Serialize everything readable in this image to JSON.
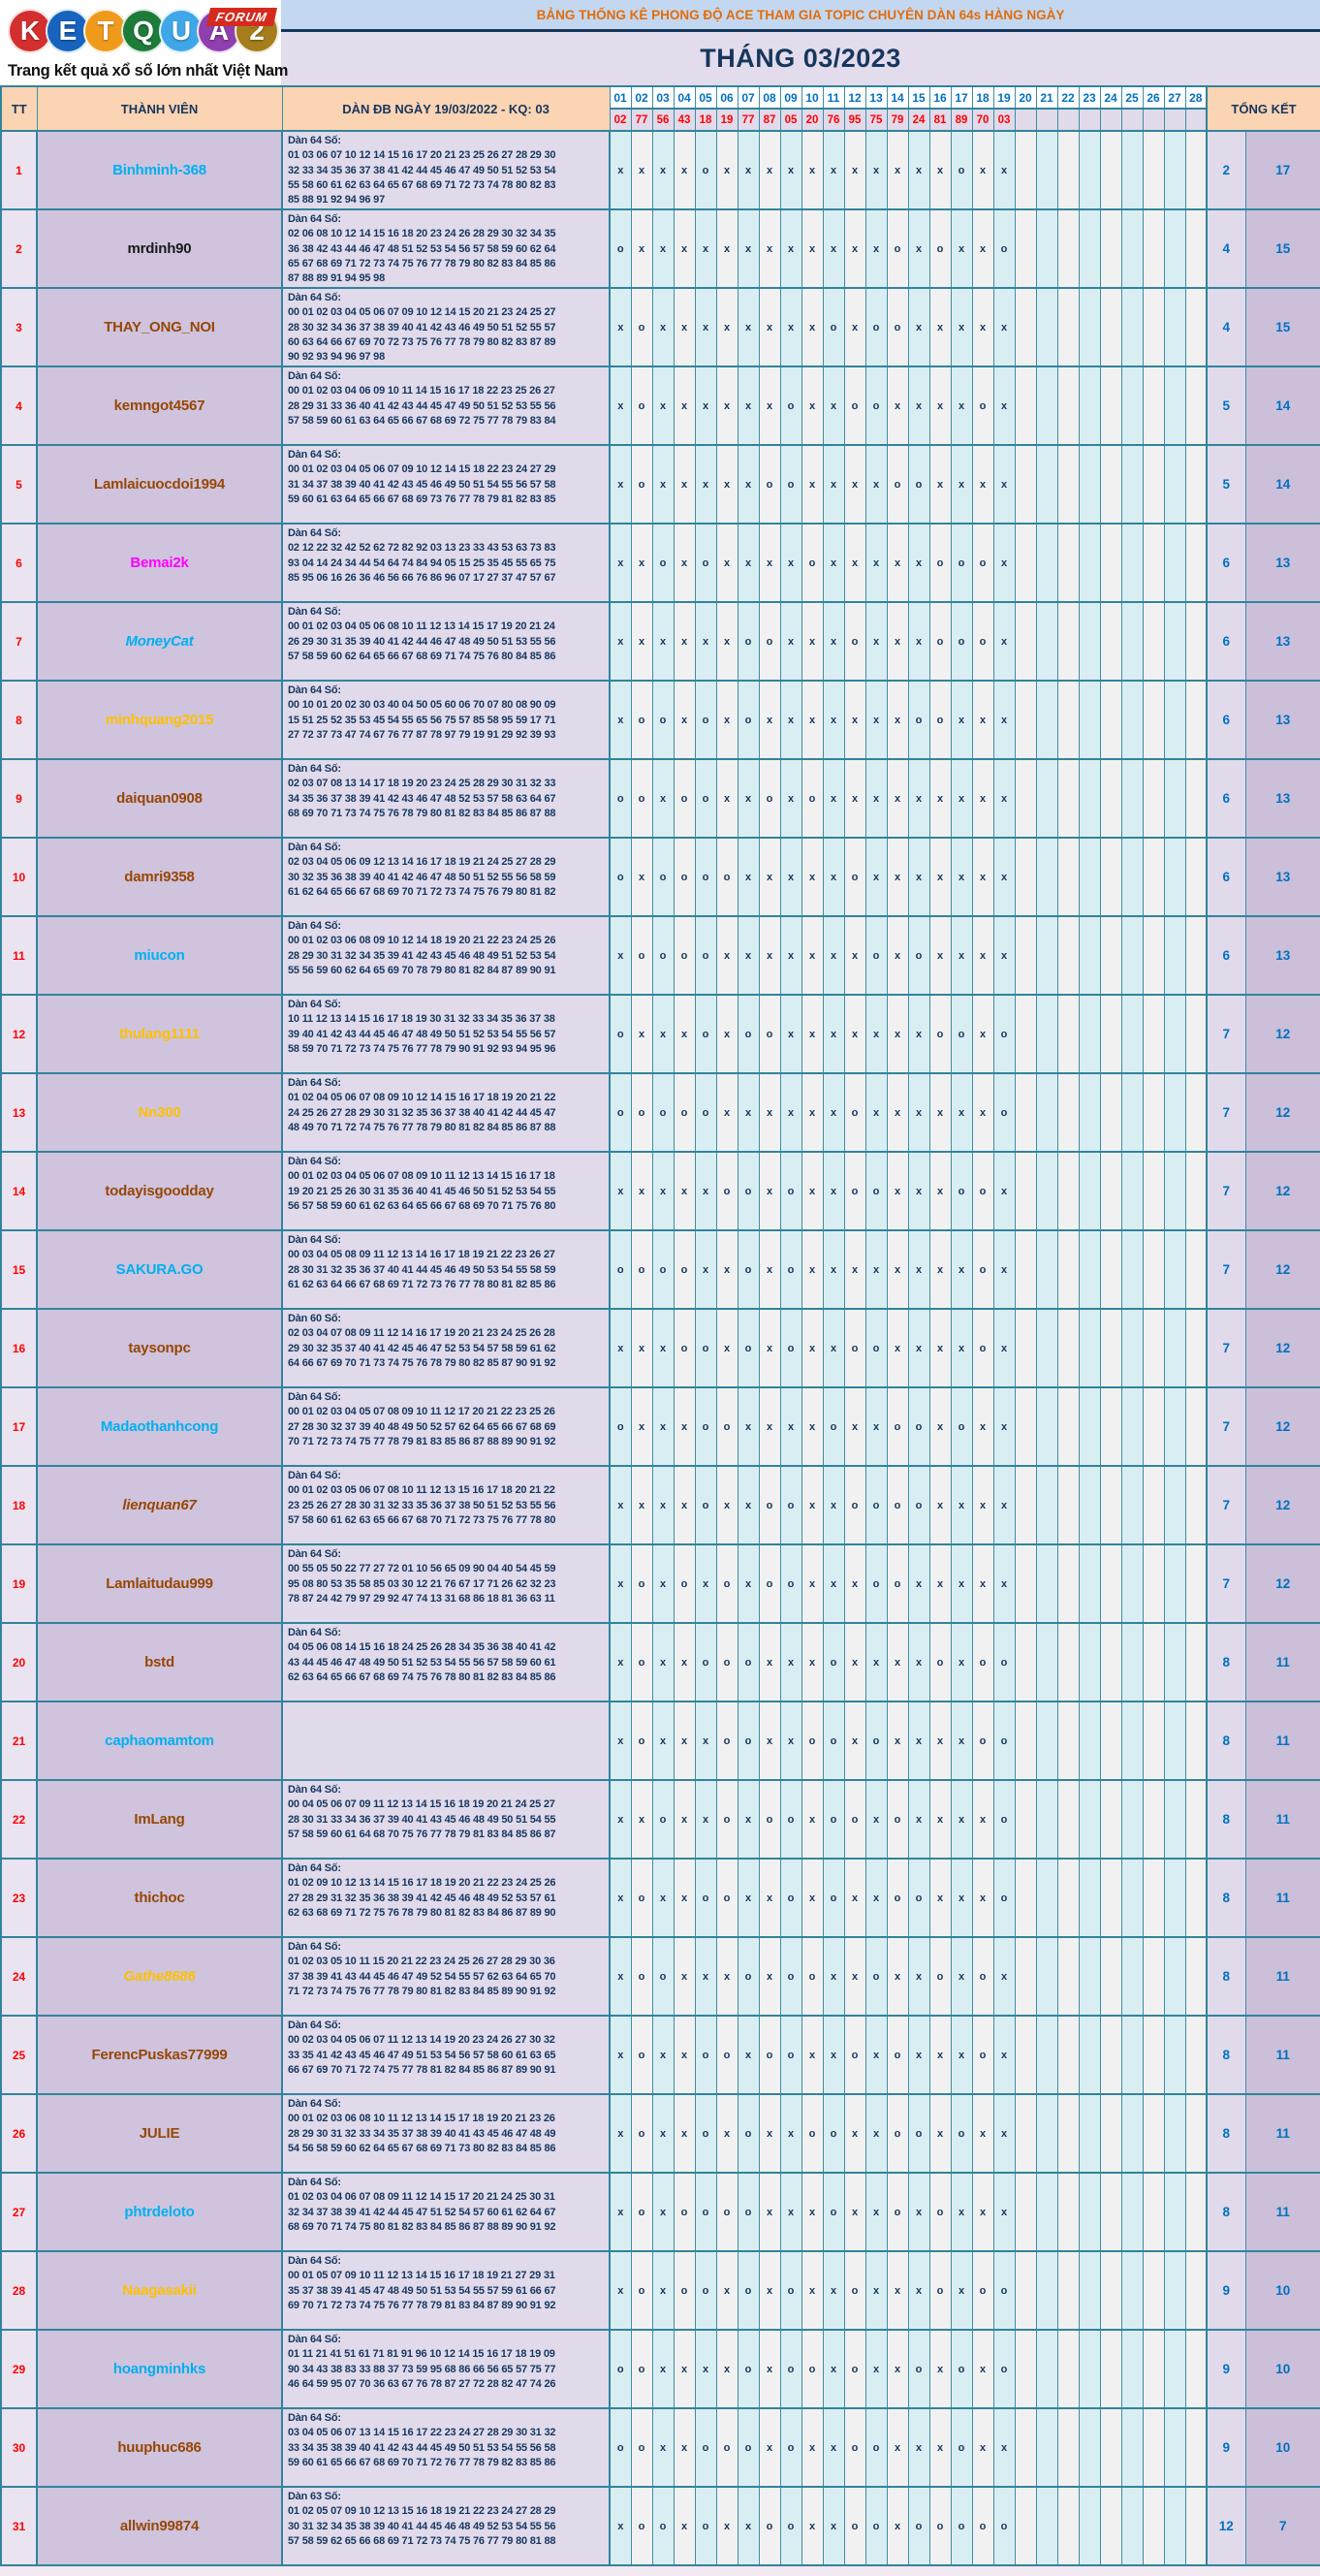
{
  "logo": {
    "letters": [
      {
        "ch": "K",
        "color": "#d42f2f"
      },
      {
        "ch": "E",
        "color": "#1763bd"
      },
      {
        "ch": "T",
        "color": "#f09a1c"
      },
      {
        "ch": "Q",
        "color": "#1d7c3a"
      },
      {
        "ch": "U",
        "color": "#3fa7e8"
      },
      {
        "ch": "A",
        "color": "#8f3fae"
      },
      {
        "ch": "2",
        "color": "#a67d1c"
      }
    ],
    "badge": "FORUM",
    "tagline": "Trang kết quả xổ số lớn nhất Việt Nam"
  },
  "banner": {
    "title": "BẢNG THỐNG KÊ PHONG ĐỘ ACE THAM GIA TOPIC CHUYÊN DÀN 64s HÀNG NGÀY",
    "month": "THÁNG 03/2023"
  },
  "table": {
    "col_tt": "TT",
    "col_member": "THÀNH VIÊN",
    "col_dan": "DÀN ĐB NGÀY 19/03/2022 - KQ: 03",
    "col_total": "TỔNG KẾT",
    "days": [
      "01",
      "02",
      "03",
      "04",
      "05",
      "06",
      "07",
      "08",
      "09",
      "10",
      "11",
      "12",
      "13",
      "14",
      "15",
      "16",
      "17",
      "18",
      "19",
      "20",
      "21",
      "22",
      "23",
      "24",
      "25",
      "26",
      "27",
      "28"
    ],
    "results": [
      "02",
      "77",
      "56",
      "43",
      "18",
      "19",
      "77",
      "87",
      "05",
      "20",
      "76",
      "95",
      "75",
      "79",
      "24",
      "81",
      "89",
      "70",
      "03",
      "",
      "",
      "",
      "",
      "",
      "",
      "",
      "",
      ""
    ],
    "rows": [
      {
        "tt": "1",
        "name": "Binhminh-368",
        "color": "#00b0f0",
        "italic": false,
        "dan_label": "Dàn 64 Số:",
        "dan_lines": [
          "01 03 06 07 10 12 14 15 16 17 20 21 23 25 26 27 28 29 30",
          "32 33 34 35 36 37 38 41 42 44 45 46 47 49 50 51 52 53 54",
          "55 58 60 61 62 63 64 65 67 68 69 71 72 73 74 78 80 82 83",
          "85 88 91 92 94 96 97"
        ],
        "marks": "xxxxoxxxxxxxxxxxoxx",
        "miss": "2",
        "hit": "17"
      },
      {
        "tt": "2",
        "name": "mrdinh90",
        "color": "#1a1a1a",
        "italic": false,
        "dan_label": "Dàn 64 Số:",
        "dan_lines": [
          "02 06 08 10 12 14 15 16 18 20 23 24 26 28 29 30 32 34 35",
          "36 38 42 43 44 46 47 48 51 52 53 54 56 57 58 59 60 62 64",
          "65 67 68 69 71 72 73 74 75 76 77 78 79 80 82 83 84 85 86",
          "87 88 89 91 94 95 98"
        ],
        "marks": "oxxxxxxxxxxxxoxoxxo",
        "miss": "4",
        "hit": "15"
      },
      {
        "tt": "3",
        "name": "THAY_ONG_NOI",
        "color": "#974706",
        "italic": false,
        "dan_label": "Dàn 64 Số:",
        "dan_lines": [
          "00 01 02 03 04 05 06 07 09 10 12 14 15 20 21 23 24 25 27",
          "28 30 32 34 36 37 38 39 40 41 42 43 46 49 50 51 52 55 57",
          "60 63 64 66 67 69 70 72 73 75 76 77 78 79 80 82 83 87 89",
          "90 92 93 94 96 97 98"
        ],
        "marks": "xoxxxxxxxxoxooxxxxx",
        "miss": "4",
        "hit": "15"
      },
      {
        "tt": "4",
        "name": "kemngot4567",
        "color": "#974706",
        "italic": false,
        "dan_label": "Dàn 64 Số:",
        "dan_lines": [
          "00 01 02 03 04 06 09 10 11 14 15 16 17 18 22 23 25 26 27",
          "28 29 31 33 36 40 41 42 43 44 45 47 49 50 51 52 53 55 56",
          "57 58 59 60 61 63 64 65 66 67 68 69 72 75 77 78 79 83 84"
        ],
        "marks": "xoxxxxxxoxxooxxxxox",
        "miss": "5",
        "hit": "14"
      },
      {
        "tt": "5",
        "name": "Lamlaicuocdoi1994",
        "color": "#974706",
        "italic": false,
        "dan_label": "Dàn 64 Số:",
        "dan_lines": [
          "00 01 02 03 04 05 06 07 09 10 12 14 15 18 22 23 24 27 29",
          "31 34 37 38 39 40 41 42 43 45 46 49 50 51 54 55 56 57 58",
          "59 60 61 63 64 65 66 67 68 69 73 76 77 78 79 81 82 83 85"
        ],
        "marks": "xoxxxxxooxxxxooxxxx",
        "miss": "5",
        "hit": "14"
      },
      {
        "tt": "6",
        "name": "Bemai2k",
        "color": "#ff00ff",
        "italic": false,
        "dan_label": "Dàn 64 Số:",
        "dan_lines": [
          "02 12 22 32 42 52 62 72 82 92 03 13 23 33 43 53 63 73 83",
          "93 04 14 24 34 44 54 64 74 84 94 05 15 25 35 45 55 65 75",
          "85 95 06 16 26 36 46 56 66 76 86 96 07 17 27 37 47 57 67"
        ],
        "marks": "xxoxoxxxxoxxxxxooox",
        "miss": "6",
        "hit": "13"
      },
      {
        "tt": "7",
        "name": "MoneyCat",
        "color": "#00b0f0",
        "italic": true,
        "dan_label": "Dàn 64 Số:",
        "dan_lines": [
          "00 01 02 03 04 05 06 08 10 11 12 13 14 15 17 19 20 21 24",
          "26 29 30 31 35 39 40 41 42 44 46 47 48 49 50 51 53 55 56",
          "57 58 59 60 62 64 65 66 67 68 69 71 74 75 76 80 84 85 86"
        ],
        "marks": "xxxxxxooxxxoxxxooox",
        "miss": "6",
        "hit": "13"
      },
      {
        "tt": "8",
        "name": "minhquang2015",
        "color": "#ffc000",
        "italic": false,
        "dan_label": "Dàn 64 Số:",
        "dan_lines": [
          "00 10 01 20 02 30 03 40 04 50 05 60 06 70 07 80 08 90 09",
          "15 51 25 52 35 53 45 54 55 65 56 75 57 85 58 95 59 17 71",
          "27 72 37 73 47 74 67 76 77 87 78 97 79 19 91 29 92 39 93"
        ],
        "marks": "xooxoxoxxxxxxxooxxx",
        "miss": "6",
        "hit": "13"
      },
      {
        "tt": "9",
        "name": "daiquan0908",
        "color": "#974706",
        "italic": false,
        "dan_label": "Dàn 64 Số:",
        "dan_lines": [
          "02 03 07 08 13 14 17 18 19 20 23 24 25 28 29 30 31 32 33",
          "34 35 36 37 38 39 41 42 43 46 47 48 52 53 57 58 63 64 67",
          "68 69 70 71 73 74 75 76 78 79 80 81 82 83 84 85 86 87 88"
        ],
        "marks": "ooxooxxoxoxxxxxxxxx",
        "miss": "6",
        "hit": "13"
      },
      {
        "tt": "10",
        "name": "damri9358",
        "color": "#974706",
        "italic": false,
        "dan_label": "Dàn 64 Số:",
        "dan_lines": [
          "02 03 04 05 06 09 12 13 14 16 17 18 19 21 24 25 27 28 29",
          "30 32 35 36 38 39 40 41 42 46 47 48 50 51 52 55 56 58 59",
          "61 62 64 65 66 67 68 69 70 71 72 73 74 75 76 79 80 81 82"
        ],
        "marks": "oxooooxxxxxoxxxxxxx",
        "miss": "6",
        "hit": "13"
      },
      {
        "tt": "11",
        "name": "miucon",
        "color": "#00b0f0",
        "italic": false,
        "dan_label": "Dàn 64 Số:",
        "dan_lines": [
          "00 01 02 03 06 08 09 10 12 14 18 19 20 21 22 23 24 25 26",
          "28 29 30 31 32 34 35 39 41 42 43 45 46 48 49 51 52 53 54",
          "55 56 59 60 62 64 65 69 70 78 79 80 81 82 84 87 89 90 91"
        ],
        "marks": "xooooxxxxxxxoxoxxxx",
        "miss": "6",
        "hit": "13"
      },
      {
        "tt": "12",
        "name": "thulang1111",
        "color": "#ffc000",
        "italic": false,
        "dan_label": "Dàn 64 Số:",
        "dan_lines": [
          "10 11 12 13 14 15 16 17 18 19 30 31 32 33 34 35 36 37 38",
          "39 40 41 42 43 44 45 46 47 48 49 50 51 52 53 54 55 56 57",
          "58 59 70 71 72 73 74 75 76 77 78 79 90 91 92 93 94 95 96"
        ],
        "marks": "oxxxoxooxxxxxxxooxo",
        "miss": "7",
        "hit": "12"
      },
      {
        "tt": "13",
        "name": "Nn300",
        "color": "#ffc000",
        "italic": false,
        "dan_label": "Dàn 64 Số:",
        "dan_lines": [
          "01 02 04 05 06 07 08 09 10 12 14 15 16 17 18 19 20 21 22",
          "24 25 26 27 28 29 30 31 32 35 36 37 38 40 41 42 44 45 47",
          "48 49 70 71 72 74 75 76 77 78 79 80 81 82 84 85 86 87 88"
        ],
        "marks": "oooooxxxxxxoxxxxxxo",
        "miss": "7",
        "hit": "12"
      },
      {
        "tt": "14",
        "name": "todayisgoodday",
        "color": "#974706",
        "italic": false,
        "dan_label": "Dàn 64 Số:",
        "dan_lines": [
          "00 01 02 03 04 05 06 07 08 09 10 11 12 13 14 15 16 17 18",
          "19 20 21 25 26 30 31 35 36 40 41 45 46 50 51 52 53 54 55",
          "56 57 58 59 60 61 62 63 64 65 66 67 68 69 70 71 75 76 80"
        ],
        "marks": "xxxxxooxoxxooxxxoox",
        "miss": "7",
        "hit": "12"
      },
      {
        "tt": "15",
        "name": "SAKURA.GO",
        "color": "#00b0f0",
        "italic": false,
        "dan_label": "Dàn 64 Số:",
        "dan_lines": [
          "00 03 04 05 08 09 11 12 13 14 16 17 18 19 21 22 23 26 27",
          "28 30 31 32 35 36 37 40 41 44 45 46 49 50 53 54 55 58 59",
          "61 62 63 64 66 67 68 69 71 72 73 76 77 78 80 81 82 85 86"
        ],
        "marks": "ooooxxoxoxxxxxxxxox",
        "miss": "7",
        "hit": "12"
      },
      {
        "tt": "16",
        "name": "taysonpc",
        "color": "#974706",
        "italic": false,
        "dan_label": "Dàn 60 Số:",
        "dan_lines": [
          "02 03 04 07 08 09 11 12 14 16 17 19 20 21 23 24 25 26 28",
          "29 30 32 35 37 40 41 42 45 46 47 52 53 54 57 58 59 61 62",
          "64 66 67 69 70 71 73 74 75 76 78 79 80 82 85 87 90 91 92"
        ],
        "marks": "xxxooxoxoxxooxxxxox",
        "miss": "7",
        "hit": "12"
      },
      {
        "tt": "17",
        "name": "Madaothanhcong",
        "color": "#00b0f0",
        "italic": false,
        "dan_label": "Dàn 64 Số:",
        "dan_lines": [
          "00 01 02 03 04 05 07 08 09 10 11 12 17 20 21 22 23 25 26",
          "27 28 30 32 37 39 40 48 49 50 52 57 62 64 65 66 67 68 69",
          "70 71 72 73 74 75 77 78 79 81 83 85 86 87 88 89 90 91 92"
        ],
        "marks": "oxxxooxxxxoxxooxoxx",
        "miss": "7",
        "hit": "12"
      },
      {
        "tt": "18",
        "name": "lienquan67",
        "color": "#974706",
        "italic": true,
        "dan_label": "Dàn 64 Số:",
        "dan_lines": [
          "00 01 02 03 05 06 07 08 10 11 12 13 15 16 17 18 20 21 22",
          "23 25 26 27 28 30 31 32 33 35 36 37 38 50 51 52 53 55 56",
          "57 58 60 61 62 63 65 66 67 68 70 71 72 73 75 76 77 78 80"
        ],
        "marks": "xxxxoxxooxxooooxxxx",
        "miss": "7",
        "hit": "12"
      },
      {
        "tt": "19",
        "name": "Lamlaitudau999",
        "color": "#974706",
        "italic": false,
        "dan_label": "Dàn 64 Số:",
        "dan_lines": [
          "00 55 05 50 22 77 27 72 01 10 56 65 09 90 04 40 54 45 59",
          "95 08 80 53 35 58 85 03 30 12 21 76 67 17 71 26 62 32 23",
          "78 87 24 42 79 97 29 92 47 74 13 31 68 86 18 81 36 63 11"
        ],
        "marks": "xoxoxoxooxxxooxxxxx",
        "miss": "7",
        "hit": "12"
      },
      {
        "tt": "20",
        "name": "bstd",
        "color": "#974706",
        "italic": false,
        "dan_label": "Dàn 64 Số:",
        "dan_lines": [
          "04 05 06 08 14 15 16 18 24 25 26 28 34 35 36 38 40 41 42",
          "43 44 45 46 47 48 49 50 51 52 53 54 55 56 57 58 59 60 61",
          "62 63 64 65 66 67 68 69 74 75 76 78 80 81 82 83 84 85 86"
        ],
        "marks": "xoxxoooxxxoxxxxoxoo",
        "miss": "8",
        "hit": "11"
      },
      {
        "tt": "21",
        "name": "caphaomamtom",
        "color": "#00b0f0",
        "italic": false,
        "dan_label": "",
        "dan_lines": [],
        "marks": "xoxxxooxxooxoxxxxoo",
        "miss": "8",
        "hit": "11"
      },
      {
        "tt": "22",
        "name": "ImLang",
        "color": "#974706",
        "italic": false,
        "dan_label": "Dàn 64 Số:",
        "dan_lines": [
          "00 04 05 06 07 09 11 12 13 14 15 16 18 19 20 21 24 25 27",
          "28 30 31 33 34 36 37 39 40 41 43 45 46 48 49 50 51 54 55",
          "57 58 59 60 61 64 68 70 75 76 77 78 79 81 83 84 85 86 87"
        ],
        "marks": "xxoxxoxooxooxoxxxxo",
        "miss": "8",
        "hit": "11"
      },
      {
        "tt": "23",
        "name": "thichoc",
        "color": "#974706",
        "italic": false,
        "dan_label": "Dàn 64 Số:",
        "dan_lines": [
          "01 02 09 10 12 13 14 15 16 17 18 19 20 21 22 23 24 25 26",
          "27 28 29 31 32 35 36 38 39 41 42 45 46 48 49 52 53 57 61",
          "62 63 68 69 71 72 75 76 78 79 80 81 82 83 84 86 87 89 90"
        ],
        "marks": "xoxxooxxoxoxxooxxxo",
        "miss": "8",
        "hit": "11"
      },
      {
        "tt": "24",
        "name": "Gathe8686",
        "color": "#ffc000",
        "italic": true,
        "dan_label": "Dàn 64 Số:",
        "dan_lines": [
          "01 02 03 05 10 11 15 20 21 22 23 24 25 26 27 28 29 30 36",
          "37 38 39 41 43 44 45 46 47 49 52 54 55 57 62 63 64 65 70",
          "71 72 73 74 75 76 77 78 79 80 81 82 83 84 85 89 90 91 92"
        ],
        "marks": "xooxxxoxooxxoxxoxox",
        "miss": "8",
        "hit": "11"
      },
      {
        "tt": "25",
        "name": "FerencPuskas77999",
        "color": "#974706",
        "italic": false,
        "dan_label": "Dàn 64 Số:",
        "dan_lines": [
          "00 02 03 04 05 06 07 11 12 13 14 19 20 23 24 26 27 30 32",
          "33 35 41 42 43 45 46 47 49 51 53 54 56 57 58 60 61 63 65",
          "66 67 69 70 71 72 74 75 77 78 81 82 84 85 86 87 89 90 91"
        ],
        "marks": "xoxxooxooxxoxoxxxox",
        "miss": "8",
        "hit": "11"
      },
      {
        "tt": "26",
        "name": "JULIE",
        "color": "#974706",
        "italic": false,
        "dan_label": "Dàn 64 Số:",
        "dan_lines": [
          "00 01 02 03 06 08 10 11 12 13 14 15 17 18 19 20 21 23 26",
          "28 29 30 31 32 33 34 35 37 38 39 40 41 43 45 46 47 48 49",
          "54 56 58 59 60 62 64 65 67 68 69 71 73 80 82 83 84 85 86"
        ],
        "marks": "xoxxoxoxxooxxooxoxx",
        "miss": "8",
        "hit": "11"
      },
      {
        "tt": "27",
        "name": "phtrdeloto",
        "color": "#00b0f0",
        "italic": false,
        "dan_label": "Dàn 64 Số:",
        "dan_lines": [
          "01 02 03 04 06 07 08 09 11 12 14 15 17 20 21 24 25 30 31",
          "32 34 37 38 39 41 42 44 45 47 51 52 54 57 60 61 62 64 67",
          "68 69 70 71 74 75 80 81 82 83 84 85 86 87 88 89 90 91 92"
        ],
        "marks": "xoxooooxxxoxxoxoxxx",
        "miss": "8",
        "hit": "11"
      },
      {
        "tt": "28",
        "name": "Naagasakii",
        "color": "#ffc000",
        "italic": false,
        "dan_label": "Dàn 64 Số:",
        "dan_lines": [
          "00 01 05 07 09 10 11 12 13 14 15 16 17 18 19 21 27 29 31",
          "35 37 38 39 41 45 47 48 49 50 51 53 54 55 57 59 61 66 67",
          "69 70 71 72 73 74 75 76 77 78 79 81 83 84 87 89 90 91 92"
        ],
        "marks": "xoxooxoxoxxoxxxoxoo",
        "miss": "9",
        "hit": "10"
      },
      {
        "tt": "29",
        "name": "hoangminhks",
        "color": "#00b0f0",
        "italic": false,
        "dan_label": "Dàn 64 Số:",
        "dan_lines": [
          "01 11 21 41 51 61 71 81 91 96 10 12 14 15 16 17 18 19 09",
          "90 34 43 38 83 33 88 37 73 59 95 68 86 66 56 65 57 75 77",
          "46 64 59 95 07 70 36 63 67 76 78 87 27 72 28 82 47 74 26"
        ],
        "marks": "ooxxxxoxooxoxxoxoxo",
        "miss": "9",
        "hit": "10"
      },
      {
        "tt": "30",
        "name": "huuphuc686",
        "color": "#974706",
        "italic": false,
        "dan_label": "Dàn 64 Số:",
        "dan_lines": [
          "03 04 05 06 07 13 14 15 16 17 22 23 24 27 28 29 30 31 32",
          "33 34 35 38 39 40 41 42 43 44 45 49 50 51 53 54 55 56 58",
          "59 60 61 65 66 67 68 69 70 71 72 76 77 78 79 82 83 85 86"
        ],
        "marks": "ooxxoooxoxxooxxxoxx",
        "miss": "9",
        "hit": "10"
      },
      {
        "tt": "31",
        "name": "allwin99874",
        "color": "#974706",
        "italic": false,
        "dan_label": "Dàn 63 Số:",
        "dan_lines": [
          "01 02 05 07 09 10 12 13 15 16 18 19 21 22 23 24 27 28 29",
          "30 31 32 34 35 38 39 40 41 44 45 46 48 49 52 53 54 55 56",
          "57 58 59 62 65 66 68 69 71 72 73 74 75 76 77 79 80 81 88"
        ],
        "marks": "xooxoxxooxxooxooooo",
        "miss": "12",
        "hit": "7"
      }
    ]
  }
}
